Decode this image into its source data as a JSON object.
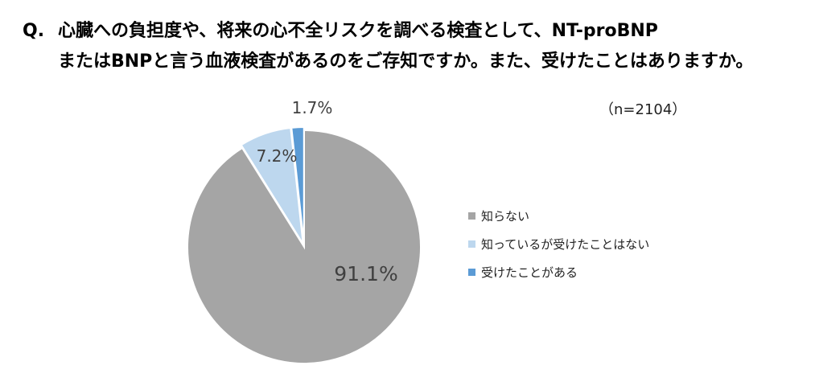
{
  "question": {
    "prefix": "Q.",
    "line1": "心臓への負担度や、将来の心不全リスクを調べる検査として、NT-proBNP",
    "line2": "またはBNPと言う血液検査があるのをご存知ですか。また、受けたことはありますか。"
  },
  "sample_size": "（n=2104）",
  "chart_data": {
    "type": "pie",
    "categories": [
      "知らない",
      "知っているが受けたことはない",
      "受けたことがある"
    ],
    "values": [
      91.1,
      7.2,
      1.7
    ],
    "labels": [
      "91.1%",
      "7.2%",
      "1.7%"
    ],
    "colors": [
      "#a5a5a5",
      "#bdd7ee",
      "#5b9bd5"
    ],
    "start": "12 o'clock",
    "direction": "clockwise, largest slice first",
    "exploded_slices": [
      "知っているが受けたことはない",
      "受けたことがある"
    ],
    "legend_position": "right"
  }
}
